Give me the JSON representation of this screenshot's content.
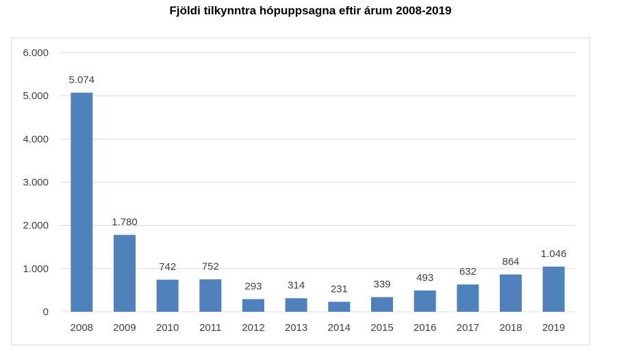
{
  "chart_data": {
    "type": "bar",
    "title": "Fjöldi tilkynntra hópuppsagna eftir árum 2008-2019",
    "xlabel": "",
    "ylabel": "",
    "categories": [
      "2008",
      "2009",
      "2010",
      "2011",
      "2012",
      "2013",
      "2014",
      "2015",
      "2016",
      "2017",
      "2018",
      "2019"
    ],
    "values": [
      5074,
      1780,
      742,
      752,
      293,
      314,
      231,
      339,
      493,
      632,
      864,
      1046
    ],
    "data_labels": [
      "5.074",
      "1.780",
      "742",
      "752",
      "293",
      "314",
      "231",
      "339",
      "493",
      "632",
      "864",
      "1.046"
    ],
    "ylim": [
      0,
      6000
    ],
    "y_ticks": [
      0,
      1000,
      2000,
      3000,
      4000,
      5000,
      6000
    ],
    "y_tick_labels": [
      "0",
      "1.000",
      "2.000",
      "3.000",
      "4.000",
      "5.000",
      "6.000"
    ],
    "grid": true,
    "legend": "none",
    "colors": {
      "bar": "#4f81bd",
      "grid": "#d9d9d9",
      "axis": "#d9d9d9",
      "text": "#404040"
    }
  }
}
